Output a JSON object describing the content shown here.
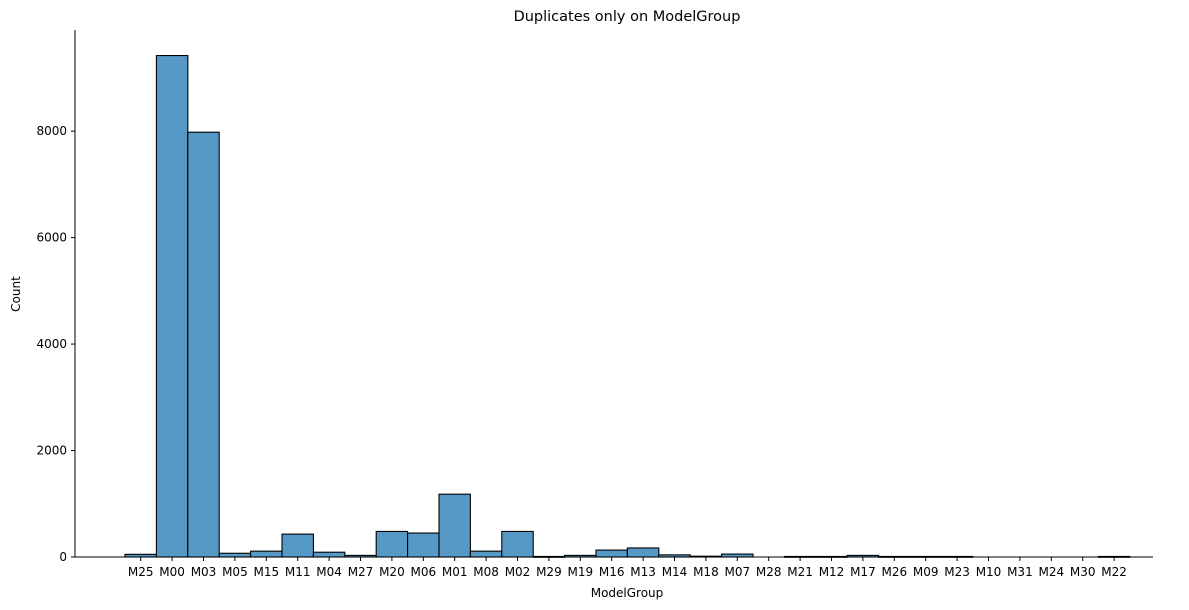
{
  "chart_data": {
    "type": "bar",
    "title": "Duplicates only on ModelGroup",
    "xlabel": "ModelGroup",
    "ylabel": "Count",
    "ylim": [
      0,
      9900
    ],
    "yticks": [
      0,
      2000,
      4000,
      6000,
      8000
    ],
    "grid": false,
    "legend": "none",
    "bar_color": "#5799c6",
    "edge_color": "#000000",
    "categories": [
      "M25",
      "M00",
      "M03",
      "M05",
      "M15",
      "M11",
      "M04",
      "M27",
      "M20",
      "M06",
      "M01",
      "M08",
      "M02",
      "M29",
      "M19",
      "M16",
      "M13",
      "M14",
      "M18",
      "M07",
      "M28",
      "M21",
      "M12",
      "M17",
      "M26",
      "M09",
      "M23",
      "M10",
      "M31",
      "M24",
      "M30",
      "M22"
    ],
    "values": [
      50,
      9420,
      7980,
      70,
      110,
      430,
      90,
      30,
      480,
      450,
      1180,
      110,
      480,
      10,
      30,
      130,
      170,
      40,
      15,
      55,
      0,
      10,
      10,
      30,
      10,
      10,
      10,
      0,
      0,
      0,
      0,
      10
    ]
  }
}
